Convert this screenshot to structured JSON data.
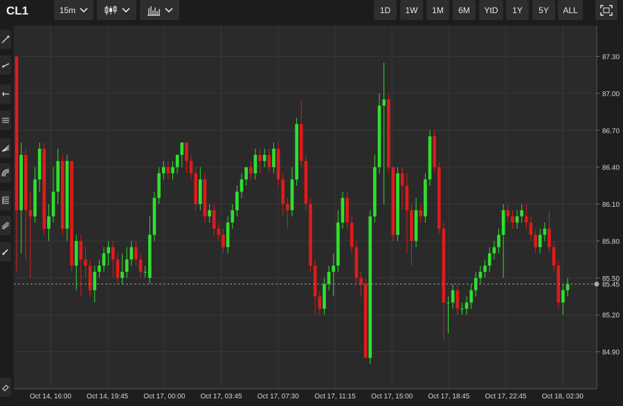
{
  "toolbar": {
    "symbol": "CL1",
    "interval": "15m",
    "chart_type_icon": "candlestick-icon",
    "indicators_icon": "bar-chart-icon",
    "ranges": [
      "1D",
      "1W",
      "1M",
      "6M",
      "YtD",
      "1Y",
      "5Y",
      "ALL"
    ],
    "fullscreen_icon": "fullscreen-icon"
  },
  "tools": [
    "trendline-icon",
    "ray-icon",
    "horizontal-line-icon",
    "channel-icon",
    "fan-icon",
    "arc-icon",
    "fibonacci-icon",
    "pitchfork-icon",
    "brush-icon",
    "eraser-icon"
  ],
  "colors": {
    "up": "#2ee02e",
    "down": "#e01a1a",
    "background": "#2a2a2a",
    "grid": "#383838"
  },
  "chart_data": {
    "type": "candlestick",
    "ylim": [
      84.6,
      87.55
    ],
    "grid": true,
    "y_ticks": [
      "87.30",
      "87.00",
      "86.70",
      "86.40",
      "86.10",
      "85.80",
      "85.50",
      "85.20",
      "84.90"
    ],
    "x_ticks": [
      "Oct 14, 16:00",
      "Oct 14, 19:45",
      "Oct 17, 00:00",
      "Oct 17, 03:45",
      "Oct 17, 07:30",
      "Oct 17, 11:15",
      "Oct 17, 15:00",
      "Oct 17, 18:45",
      "Oct 17, 22:45",
      "Oct 18, 02:30"
    ],
    "last_price": "85.45",
    "candles": [
      [
        87.3,
        86.05,
        87.3,
        85.55
      ],
      [
        86.05,
        86.5,
        86.6,
        85.7
      ],
      [
        86.5,
        86.05,
        86.55,
        85.65
      ],
      [
        86.05,
        86.0,
        86.2,
        85.5
      ],
      [
        86.0,
        86.3,
        86.4,
        85.95
      ],
      [
        86.3,
        86.55,
        86.6,
        86.2
      ],
      [
        86.55,
        85.9,
        86.6,
        85.85
      ],
      [
        85.9,
        86.0,
        86.1,
        85.8
      ],
      [
        86.0,
        86.2,
        86.4,
        85.95
      ],
      [
        86.2,
        86.45,
        86.55,
        86.1
      ],
      [
        86.45,
        85.9,
        86.5,
        85.85
      ],
      [
        85.9,
        86.45,
        86.5,
        85.8
      ],
      [
        86.45,
        85.6,
        86.45,
        85.55
      ],
      [
        85.6,
        85.8,
        85.85,
        85.4
      ],
      [
        85.8,
        85.65,
        85.85,
        85.35
      ],
      [
        85.65,
        85.6,
        85.75,
        85.5
      ],
      [
        85.6,
        85.4,
        85.65,
        85.35
      ],
      [
        85.4,
        85.55,
        85.6,
        85.3
      ],
      [
        85.55,
        85.6,
        85.65,
        85.5
      ],
      [
        85.6,
        85.7,
        85.75,
        85.55
      ],
      [
        85.7,
        85.75,
        85.8,
        85.6
      ],
      [
        85.75,
        85.65,
        85.8,
        85.5
      ],
      [
        85.65,
        85.5,
        85.7,
        85.45
      ],
      [
        85.5,
        85.55,
        85.7,
        85.45
      ],
      [
        85.55,
        85.65,
        85.75,
        85.5
      ],
      [
        85.65,
        85.75,
        85.8,
        85.6
      ],
      [
        85.75,
        85.65,
        85.8,
        85.6
      ],
      [
        85.65,
        85.55,
        85.7,
        85.5
      ],
      [
        85.55,
        85.55,
        85.6,
        85.5
      ],
      [
        85.5,
        85.85,
        86.0,
        85.45
      ],
      [
        85.85,
        86.15,
        86.2,
        85.8
      ],
      [
        86.15,
        86.35,
        86.4,
        86.1
      ],
      [
        86.35,
        86.4,
        86.45,
        86.3
      ],
      [
        86.4,
        86.35,
        86.45,
        86.3
      ],
      [
        86.35,
        86.4,
        86.45,
        86.3
      ],
      [
        86.4,
        86.5,
        86.5,
        86.35
      ],
      [
        86.5,
        86.6,
        86.6,
        86.4
      ],
      [
        86.6,
        86.45,
        86.6,
        86.35
      ],
      [
        86.45,
        86.35,
        86.5,
        86.3
      ],
      [
        86.35,
        86.1,
        86.4,
        86.05
      ],
      [
        86.1,
        86.3,
        86.4,
        86.05
      ],
      [
        86.3,
        86.0,
        86.35,
        85.95
      ],
      [
        86.0,
        86.05,
        86.1,
        85.95
      ],
      [
        86.05,
        85.9,
        86.1,
        85.85
      ],
      [
        85.9,
        85.85,
        85.95,
        85.8
      ],
      [
        85.85,
        85.75,
        85.9,
        85.7
      ],
      [
        85.75,
        85.95,
        86.0,
        85.7
      ],
      [
        85.95,
        86.05,
        86.1,
        85.9
      ],
      [
        86.05,
        86.2,
        86.25,
        86.0
      ],
      [
        86.2,
        86.3,
        86.35,
        86.15
      ],
      [
        86.3,
        86.4,
        86.4,
        86.25
      ],
      [
        86.4,
        86.35,
        86.45,
        86.3
      ],
      [
        86.35,
        86.5,
        86.55,
        86.3
      ],
      [
        86.5,
        86.45,
        86.55,
        86.35
      ],
      [
        86.45,
        86.5,
        86.55,
        86.4
      ],
      [
        86.5,
        86.4,
        86.55,
        86.35
      ],
      [
        86.4,
        86.55,
        86.6,
        86.35
      ],
      [
        86.55,
        86.3,
        86.6,
        86.25
      ],
      [
        86.3,
        86.1,
        86.35,
        86.0
      ],
      [
        86.1,
        86.05,
        86.15,
        85.9
      ],
      [
        86.05,
        86.3,
        86.4,
        86.0
      ],
      [
        86.3,
        86.75,
        86.8,
        86.25
      ],
      [
        86.75,
        86.45,
        86.95,
        86.4
      ],
      [
        86.45,
        86.1,
        86.5,
        86.05
      ],
      [
        86.1,
        85.6,
        86.15,
        85.55
      ],
      [
        85.6,
        85.35,
        85.65,
        85.2
      ],
      [
        85.35,
        85.25,
        85.4,
        85.2
      ],
      [
        85.25,
        85.45,
        85.5,
        85.2
      ],
      [
        85.45,
        85.55,
        85.6,
        85.4
      ],
      [
        85.55,
        85.6,
        85.7,
        85.35
      ],
      [
        85.6,
        85.95,
        86.05,
        85.55
      ],
      [
        85.95,
        86.15,
        86.2,
        85.9
      ],
      [
        86.15,
        85.95,
        86.2,
        85.9
      ],
      [
        85.95,
        85.75,
        86.0,
        85.7
      ],
      [
        85.75,
        85.5,
        85.8,
        85.45
      ],
      [
        85.5,
        85.45,
        85.55,
        85.35
      ],
      [
        85.45,
        84.85,
        85.5,
        84.85
      ],
      [
        84.85,
        86.0,
        86.05,
        84.8
      ],
      [
        86.0,
        86.4,
        86.5,
        85.95
      ],
      [
        86.4,
        86.9,
        87.0,
        86.35
      ],
      [
        86.9,
        86.95,
        87.25,
        86.1
      ],
      [
        86.95,
        86.4,
        87.0,
        86.35
      ],
      [
        86.4,
        85.85,
        86.4,
        85.8
      ],
      [
        85.85,
        86.35,
        86.4,
        85.8
      ],
      [
        86.35,
        86.25,
        86.4,
        86.05
      ],
      [
        86.25,
        86.05,
        86.35,
        85.7
      ],
      [
        86.05,
        85.8,
        86.1,
        85.6
      ],
      [
        85.8,
        86.05,
        86.15,
        85.75
      ],
      [
        86.05,
        86.0,
        86.1,
        85.95
      ],
      [
        86.0,
        86.3,
        86.35,
        85.95
      ],
      [
        86.3,
        86.65,
        86.7,
        86.25
      ],
      [
        86.65,
        86.4,
        86.7,
        86.35
      ],
      [
        86.4,
        85.9,
        86.45,
        85.85
      ],
      [
        85.9,
        85.3,
        85.95,
        85.0
      ],
      [
        85.3,
        85.3,
        85.35,
        85.05
      ],
      [
        85.3,
        85.4,
        85.45,
        85.25
      ],
      [
        85.4,
        85.25,
        85.45,
        85.2
      ],
      [
        85.25,
        85.25,
        85.3,
        85.2
      ],
      [
        85.25,
        85.3,
        85.35,
        85.2
      ],
      [
        85.3,
        85.4,
        85.45,
        85.25
      ],
      [
        85.4,
        85.5,
        85.55,
        85.35
      ],
      [
        85.5,
        85.55,
        85.6,
        85.45
      ],
      [
        85.55,
        85.6,
        85.65,
        85.5
      ],
      [
        85.6,
        85.7,
        85.75,
        85.55
      ],
      [
        85.7,
        85.75,
        85.8,
        85.65
      ],
      [
        85.75,
        85.85,
        85.9,
        85.7
      ],
      [
        85.85,
        86.05,
        86.1,
        85.5
      ],
      [
        86.05,
        86.0,
        86.1,
        85.95
      ],
      [
        86.0,
        85.95,
        86.05,
        85.9
      ],
      [
        85.95,
        86.0,
        86.05,
        85.9
      ],
      [
        86.0,
        86.05,
        86.1,
        85.95
      ],
      [
        86.0,
        85.95,
        86.1,
        85.9
      ],
      [
        85.95,
        85.85,
        86.0,
        85.8
      ],
      [
        85.85,
        85.75,
        85.9,
        85.7
      ],
      [
        85.75,
        85.85,
        85.9,
        85.7
      ],
      [
        85.85,
        85.9,
        85.95,
        85.8
      ],
      [
        85.9,
        85.75,
        86.05,
        85.7
      ],
      [
        85.75,
        85.6,
        85.8,
        85.55
      ],
      [
        85.6,
        85.3,
        85.65,
        85.25
      ],
      [
        85.3,
        85.4,
        85.45,
        85.2
      ],
      [
        85.4,
        85.45,
        85.5,
        85.35
      ]
    ]
  }
}
